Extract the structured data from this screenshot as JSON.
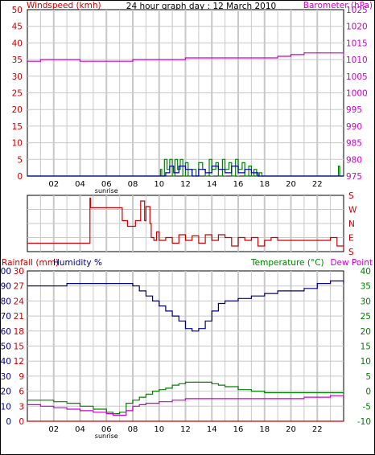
{
  "title": "24 hour graph day : 12 March 2010",
  "colors": {
    "wind": "#008000",
    "gust": "#0000a0",
    "barometer": "#cc00cc",
    "direction": "#cc0000",
    "rainfall": "#cc0000",
    "humidity": "#000080",
    "temperature": "#008000",
    "dewpoint": "#cc00cc",
    "grid": "#c8c8c8",
    "axis": "#000000"
  },
  "x_ticks": [
    "02",
    "04",
    "06",
    "08",
    "10",
    "12",
    "14",
    "16",
    "18",
    "20",
    "22"
  ],
  "sunrise_label": "sunrise",
  "chart_data": [
    {
      "type": "line",
      "left_axis_label": "Windspeed (kmh)",
      "right_axis_label": "Barometer (hPa)",
      "left_ylim": [
        0,
        50
      ],
      "left_ticks": [
        "0",
        "5",
        "10",
        "15",
        "20",
        "25",
        "30",
        "35",
        "40",
        "45",
        "50"
      ],
      "right_ylim": [
        975,
        1025
      ],
      "right_ticks": [
        "975",
        "980",
        "985",
        "990",
        "995",
        "1000",
        "1005",
        "1010",
        "1015",
        "1020",
        "1025"
      ],
      "x_range_hours": [
        0,
        24
      ],
      "series": [
        {
          "name": "Barometer",
          "axis": "right",
          "x": [
            0,
            1,
            2,
            3,
            4,
            5,
            6,
            7,
            8,
            9,
            10,
            11,
            12,
            13,
            14,
            15,
            16,
            17,
            18,
            19,
            20,
            21,
            22,
            23,
            24
          ],
          "y": [
            1009.5,
            1010,
            1010,
            1010,
            1009.5,
            1009.5,
            1009.5,
            1009.5,
            1010,
            1010,
            1010,
            1010,
            1010.5,
            1010.5,
            1010.5,
            1010.5,
            1010.5,
            1010.5,
            1010.5,
            1011,
            1011.5,
            1012,
            1012,
            1012,
            1011
          ]
        },
        {
          "name": "Windspeed",
          "axis": "left",
          "x": [
            0,
            10.1,
            10.2,
            10.4,
            10.6,
            10.8,
            11.0,
            11.2,
            11.4,
            11.6,
            11.8,
            12.0,
            12.2,
            12.5,
            12.8,
            13.0,
            13.3,
            13.5,
            13.8,
            14.0,
            14.3,
            14.5,
            14.8,
            15.0,
            15.3,
            15.5,
            15.8,
            16.0,
            16.3,
            16.5,
            16.8,
            17.0,
            17.2,
            17.4,
            17.6,
            17.8,
            23.5,
            23.6,
            23.7,
            24
          ],
          "y": [
            0,
            2,
            0,
            5,
            2,
            5,
            0,
            5,
            2,
            5,
            0,
            4,
            0,
            2,
            0,
            4,
            2,
            0,
            5,
            2,
            4,
            0,
            5,
            2,
            4,
            0,
            5,
            2,
            4,
            0,
            3,
            0,
            2,
            0,
            1,
            0,
            0,
            3,
            0,
            0
          ]
        },
        {
          "name": "Gust",
          "axis": "left",
          "x": [
            0,
            10.2,
            10.5,
            10.8,
            11.1,
            11.5,
            12.0,
            12.5,
            13.0,
            13.5,
            14.0,
            14.5,
            15.0,
            15.5,
            16.0,
            16.5,
            17.0,
            17.5,
            18.0,
            24
          ],
          "y": [
            0,
            0,
            1,
            3,
            1,
            3,
            2,
            0,
            2,
            1,
            3,
            2,
            1,
            3,
            1,
            2,
            1,
            0,
            0,
            0
          ]
        }
      ]
    },
    {
      "type": "line",
      "right_ticks": [
        "S",
        "E",
        "N",
        "W",
        "S"
      ],
      "x_range_hours": [
        0,
        24
      ],
      "series": [
        {
          "name": "Wind direction",
          "x": [
            0,
            1,
            2,
            3,
            4,
            4.7,
            4.75,
            4.8,
            6.0,
            6.5,
            7.0,
            7.2,
            7.5,
            7.6,
            8.0,
            8.2,
            8.5,
            8.6,
            8.9,
            9.0,
            9.3,
            9.4,
            9.6,
            9.8,
            10.0,
            10.5,
            11.0,
            11.5,
            12.0,
            12.5,
            13.0,
            13.5,
            14.0,
            14.5,
            15.0,
            15.5,
            16.0,
            16.5,
            17.0,
            17.5,
            18.0,
            18.5,
            19.0,
            20.0,
            21.0,
            22.0,
            22.5,
            23.0,
            23.5,
            24
          ],
          "y": [
            0.15,
            0.15,
            0.15,
            0.15,
            0.15,
            0.15,
            0.95,
            0.78,
            0.78,
            0.78,
            0.78,
            0.55,
            0.55,
            0.45,
            0.45,
            0.55,
            0.55,
            0.9,
            0.55,
            0.8,
            0.5,
            0.25,
            0.2,
            0.35,
            0.2,
            0.25,
            0.15,
            0.3,
            0.2,
            0.28,
            0.15,
            0.3,
            0.2,
            0.3,
            0.25,
            0.1,
            0.25,
            0.2,
            0.25,
            0.1,
            0.2,
            0.25,
            0.2,
            0.2,
            0.2,
            0.2,
            0.2,
            0.25,
            0.1,
            0.05
          ]
        }
      ]
    },
    {
      "type": "line",
      "rainfall_axis_label": "Rainfall (mm)",
      "humidity_axis_label": "Humidity %",
      "temperature_axis_label": "Temperature (°C)",
      "dewpoint_axis_label": "Dew Point",
      "rainfall_ylim": [
        0,
        100
      ],
      "rainfall_ticks": [
        "0",
        "10",
        "20",
        "30",
        "40",
        "50",
        "60",
        "70",
        "80",
        "90",
        "100"
      ],
      "humidity_ylim": [
        0,
        30
      ],
      "humidity_ticks": [
        "0",
        "3",
        "6",
        "9",
        "12",
        "15",
        "18",
        "21",
        "24",
        "27",
        "30"
      ],
      "temperature_ylim": [
        -10,
        40
      ],
      "temperature_ticks": [
        "-10",
        "-5",
        "0",
        "5",
        "10",
        "15",
        "20",
        "25",
        "30",
        "35",
        "40"
      ],
      "x_range_hours": [
        0,
        24
      ],
      "series": [
        {
          "name": "Humidity",
          "axis": "humidity",
          "x": [
            0,
            1,
            2,
            3,
            4,
            5,
            6,
            7,
            8,
            8.5,
            9,
            9.5,
            10,
            10.5,
            11,
            11.5,
            12,
            12.5,
            13,
            13.5,
            14,
            14.5,
            15,
            16,
            17,
            18,
            19,
            20,
            21,
            22,
            23,
            24
          ],
          "y": [
            27,
            27,
            27,
            27.5,
            27.5,
            27.5,
            27.5,
            27.5,
            27,
            26,
            25,
            24,
            23,
            22,
            21,
            20,
            18.5,
            18,
            18.5,
            20,
            22,
            23.5,
            24,
            24.5,
            25,
            25.5,
            26,
            26,
            26.5,
            27.5,
            28,
            27.5
          ]
        },
        {
          "name": "Temperature",
          "axis": "temperature",
          "x": [
            0,
            1,
            2,
            3,
            4,
            5,
            6,
            6.5,
            7,
            7.5,
            8,
            8.5,
            9,
            9.5,
            10,
            10.5,
            11,
            11.5,
            12,
            12.5,
            13,
            13.5,
            14,
            14.5,
            15,
            16,
            17,
            18,
            19,
            20,
            21,
            22,
            23,
            24
          ],
          "y": [
            -3,
            -3,
            -3.5,
            -4,
            -5,
            -6,
            -7,
            -7.5,
            -7,
            -4,
            -3,
            -2,
            -1,
            0,
            0.5,
            1,
            2,
            2.5,
            3,
            3,
            3,
            3,
            2.5,
            2,
            1.5,
            0.5,
            0,
            -0.5,
            -0.5,
            -0.5,
            -0.5,
            -0.5,
            -0.5,
            -0.5
          ]
        },
        {
          "name": "Dew Point",
          "axis": "temperature",
          "x": [
            0,
            1,
            2,
            3,
            4,
            5,
            6,
            6.5,
            7,
            7.5,
            8,
            8.5,
            9,
            9.5,
            10,
            11,
            12,
            13,
            14,
            15,
            16,
            17,
            18,
            19,
            20,
            21,
            22,
            23,
            24
          ],
          "y": [
            -4.5,
            -5,
            -5.5,
            -6,
            -6.5,
            -7,
            -7.5,
            -8,
            -8,
            -6.5,
            -5,
            -4.5,
            -4,
            -4,
            -3.5,
            -3,
            -2.5,
            -2.5,
            -2.5,
            -2.5,
            -2.5,
            -2.5,
            -2.5,
            -2.5,
            -2.5,
            -2,
            -2,
            -1.5,
            -1
          ]
        },
        {
          "name": "Rainfall",
          "axis": "rainfall",
          "x": [
            0,
            24
          ],
          "y": [
            0,
            0
          ]
        }
      ]
    }
  ]
}
